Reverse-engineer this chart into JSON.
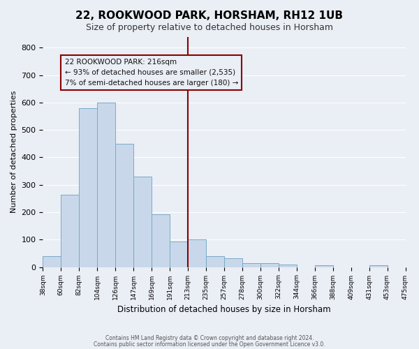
{
  "title": "22, ROOKWOOD PARK, HORSHAM, RH12 1UB",
  "subtitle": "Size of property relative to detached houses in Horsham",
  "xlabel": "Distribution of detached houses by size in Horsham",
  "ylabel": "Number of detached properties",
  "bar_color": "#c8d8ea",
  "bar_edge_color": "#7aaac8",
  "bar_values": [
    40,
    263,
    580,
    600,
    450,
    330,
    193,
    93,
    101,
    40,
    33,
    15,
    15,
    10,
    0,
    6,
    0,
    0,
    7,
    0
  ],
  "bin_edges": [
    0,
    1,
    2,
    3,
    4,
    5,
    6,
    7,
    8,
    9,
    10,
    11,
    12,
    13,
    14,
    15,
    16,
    17,
    18,
    19,
    20
  ],
  "tick_labels": [
    "38sqm",
    "60sqm",
    "82sqm",
    "104sqm",
    "126sqm",
    "147sqm",
    "169sqm",
    "191sqm",
    "213sqm",
    "235sqm",
    "257sqm",
    "278sqm",
    "300sqm",
    "322sqm",
    "344sqm",
    "366sqm",
    "388sqm",
    "409sqm",
    "431sqm",
    "453sqm",
    "475sqm"
  ],
  "vline_x": 8,
  "vline_color": "#8b0000",
  "annotation_text": "22 ROOKWOOD PARK: 216sqm\n← 93% of detached houses are smaller (2,535)\n7% of semi-detached houses are larger (180) →",
  "annotation_box_color": "#8b0000",
  "ylim": [
    0,
    840
  ],
  "yticks": [
    0,
    100,
    200,
    300,
    400,
    500,
    600,
    700,
    800
  ],
  "footer_line1": "Contains HM Land Registry data © Crown copyright and database right 2024.",
  "footer_line2": "Contains public sector information licensed under the Open Government Licence v3.0.",
  "background_color": "#eaeef5",
  "grid_color": "#ffffff"
}
